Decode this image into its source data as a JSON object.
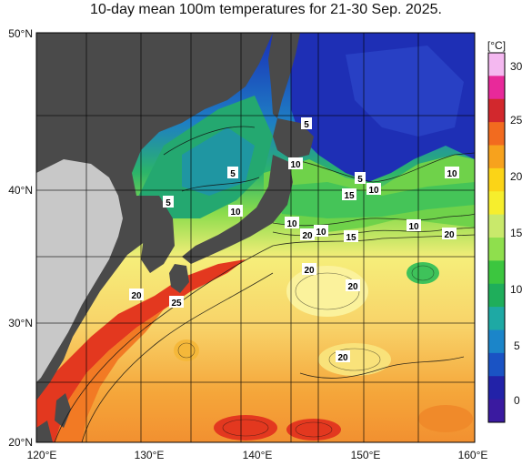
{
  "title": "10-day mean 100m temperatures for 21-30 Sep. 2025.",
  "lat_labels": [
    "50°N",
    "40°N",
    "30°N",
    "20°N"
  ],
  "lon_labels": [
    "120°E",
    "130°E",
    "140°E",
    "150°E",
    "160°E"
  ],
  "colorbar": {
    "unit": "[°C]",
    "tick_labels": [
      "30",
      "25",
      "20",
      "15",
      "10",
      "5",
      "0"
    ],
    "colors": [
      "#f4b8f0",
      "#e8299a",
      "#d2282d",
      "#f26b1f",
      "#f7a21d",
      "#fbd417",
      "#f6ee2d",
      "#c9e96b",
      "#8fdf4d",
      "#3cc63f",
      "#1fae5b",
      "#1ea9a4",
      "#1b85c9",
      "#1a53c4",
      "#2222a8",
      "#3a1aa0"
    ]
  },
  "contour_labels": [
    "5",
    "5",
    "5",
    "10",
    "5",
    "10",
    "15",
    "10",
    "10",
    "10",
    "10",
    "20",
    "10",
    "15",
    "10",
    "20",
    "20",
    "20",
    "20",
    "25",
    "20"
  ],
  "colors": {
    "land": "#4a4a4a",
    "land_light": "#c8c8c8",
    "cold": "#1a2fb8",
    "cool": "#28b46e",
    "mid": "#7fd64a",
    "warm": "#f4e97a",
    "warmer": "#f5b340",
    "hot": "#e33b20"
  }
}
